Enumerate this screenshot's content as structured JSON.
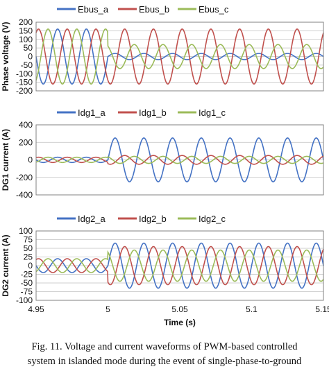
{
  "chart_data": [
    {
      "type": "line",
      "ylabel": "Phase voltage (V)",
      "xlim": [
        4.95,
        5.15
      ],
      "ylim": [
        -200,
        200
      ],
      "yticks": [
        200,
        150,
        100,
        50,
        0,
        -50,
        -100,
        -150,
        -200
      ],
      "grid": true,
      "legend": "top",
      "frequency_hz": 50,
      "event_time": 5.0,
      "series": [
        {
          "name": "Ebus_a",
          "color": "#4472C4",
          "amplitude_before": 160,
          "amplitude_after": 18,
          "phase_deg": 0
        },
        {
          "name": "Ebus_b",
          "color": "#C0504D",
          "amplitude_before": 160,
          "amplitude_after": 160,
          "phase_deg": -120
        },
        {
          "name": "Ebus_c",
          "color": "#9BBB59",
          "amplitude_before": 160,
          "amplitude_after": 70,
          "phase_deg": 120
        }
      ]
    },
    {
      "type": "line",
      "ylabel": "DG1 current (A)",
      "xlim": [
        4.95,
        5.15
      ],
      "ylim": [
        -400,
        400
      ],
      "yticks": [
        400,
        200,
        0,
        -200,
        -400
      ],
      "grid": true,
      "legend": "top",
      "frequency_hz": 50,
      "event_time": 5.0,
      "series": [
        {
          "name": "Idg1_a",
          "color": "#4472C4",
          "amplitude_before": 30,
          "amplitude_after": 250,
          "phase_deg": 0
        },
        {
          "name": "Idg1_b",
          "color": "#C0504D",
          "amplitude_before": 30,
          "amplitude_after": 50,
          "phase_deg": -120
        },
        {
          "name": "Idg1_c",
          "color": "#9BBB59",
          "amplitude_before": 30,
          "amplitude_after": 40,
          "phase_deg": 120
        }
      ]
    },
    {
      "type": "line",
      "ylabel": "DG2 current (A)",
      "xlabel": "Time (s)",
      "xlim": [
        4.95,
        5.15
      ],
      "xticks": [
        "4.95",
        "5",
        "5.05",
        "5.1",
        "5.15"
      ],
      "ylim": [
        -100,
        100
      ],
      "yticks": [
        100,
        75,
        50,
        25,
        0,
        -25,
        -50,
        -75,
        -100
      ],
      "grid": true,
      "legend": "top",
      "frequency_hz": 50,
      "event_time": 5.0,
      "series": [
        {
          "name": "Idg2_a",
          "color": "#4472C4",
          "amplitude_before": 20,
          "amplitude_after": 65,
          "phase_deg": 0
        },
        {
          "name": "Idg2_b",
          "color": "#C0504D",
          "amplitude_before": 20,
          "amplitude_after": 55,
          "phase_deg": -120
        },
        {
          "name": "Idg2_c",
          "color": "#9BBB59",
          "amplitude_before": 20,
          "amplitude_after": 45,
          "phase_deg": 120
        }
      ]
    }
  ],
  "caption": {
    "lines": [
      "Fig. 11. Voltage and current waveforms of PWM-based controlled",
      "system in islanded mode during the event of single-phase-to-ground"
    ]
  }
}
